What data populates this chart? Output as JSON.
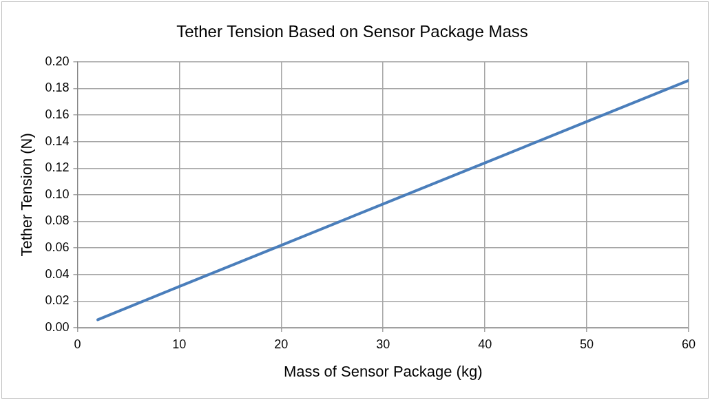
{
  "chart_data": {
    "type": "line",
    "title": "Tether Tension Based on Sensor Package Mass",
    "xlabel": "Mass of Sensor Package (kg)",
    "ylabel": "Tether Tension (N)",
    "x": [
      2,
      10,
      20,
      30,
      40,
      50,
      60
    ],
    "series": [
      {
        "color": "#4a7ebb",
        "values": [
          0.006,
          0.031,
          0.062,
          0.093,
          0.124,
          0.155,
          0.186
        ]
      }
    ],
    "xlim": [
      0,
      60
    ],
    "xticks": [
      0,
      10,
      20,
      30,
      40,
      50,
      60
    ],
    "ylim": [
      0,
      0.2
    ],
    "yticks": [
      {
        "value": 0,
        "label": "0.00"
      },
      {
        "value": 0.02,
        "label": "0.02"
      },
      {
        "value": 0.04,
        "label": "0.04"
      },
      {
        "value": 0.06,
        "label": "0.06"
      },
      {
        "value": 0.08,
        "label": "0.08"
      },
      {
        "value": 0.1,
        "label": "0.10"
      },
      {
        "value": 0.12,
        "label": "0.12"
      },
      {
        "value": 0.14,
        "label": "0.14"
      },
      {
        "value": 0.16,
        "label": "0.16"
      },
      {
        "value": 0.18,
        "label": "0.18"
      },
      {
        "value": 0.2,
        "label": "0.20"
      }
    ],
    "grid": true,
    "marker": "none",
    "line_style": "solid"
  }
}
